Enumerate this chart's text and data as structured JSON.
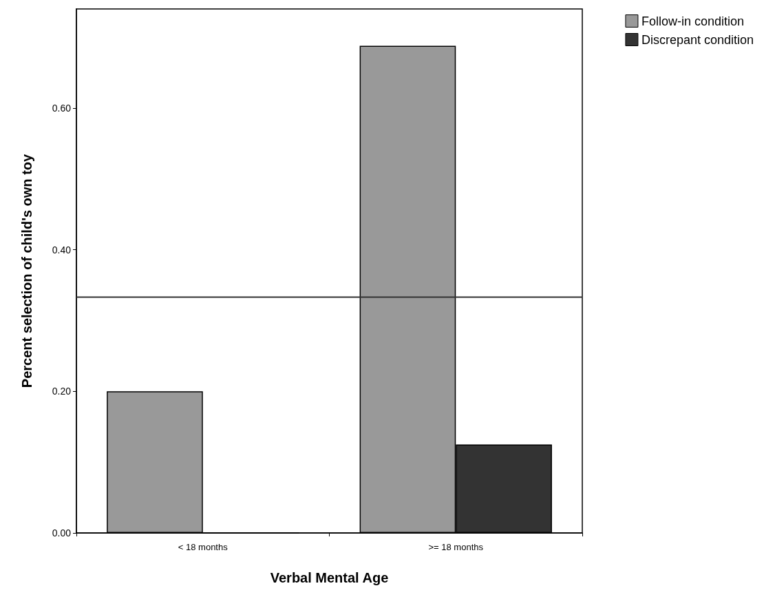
{
  "chart_data": {
    "type": "bar",
    "xlabel": "Verbal Mental Age",
    "ylabel": "Percent selection of child's own toy",
    "categories": [
      "< 18 months",
      ">= 18 months"
    ],
    "series": [
      {
        "name": "Follow-in condition",
        "color": "#999999",
        "values": [
          0.2,
          0.688
        ]
      },
      {
        "name": "Discrepant condition",
        "color": "#333333",
        "values": [
          0,
          0.125
        ]
      }
    ],
    "ylim": [
      0,
      0.74
    ],
    "yticks": [
      {
        "value": 0,
        "label": "0.00"
      },
      {
        "value": 0.2,
        "label": "0.20"
      },
      {
        "value": 0.4,
        "label": "0.40"
      },
      {
        "value": 0.6,
        "label": "0.60"
      }
    ],
    "ref_lines": [
      {
        "axis": "y",
        "value": 0.333,
        "color": "#333333"
      }
    ],
    "grid": false,
    "legend": "top right"
  }
}
